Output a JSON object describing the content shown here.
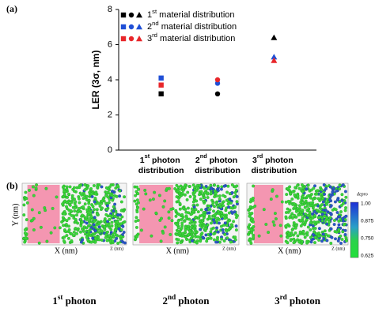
{
  "chart_data": {
    "type": "scatter",
    "panel_label": "(a)",
    "ylabel": "LER (3σ, nm)",
    "categories": [
      "1st photon distribution",
      "2nd photon distribution",
      "3rd photon distribution"
    ],
    "markers": [
      "square",
      "circle",
      "triangle"
    ],
    "series": [
      {
        "name": "1st material distribution",
        "color": "#000000",
        "values": [
          3.2,
          3.2,
          6.4
        ]
      },
      {
        "name": "2nd material distribution",
        "color": "#1f4fd6",
        "values": [
          4.1,
          3.8,
          5.3
        ]
      },
      {
        "name": "3rd material distribution",
        "color": "#e8262a",
        "values": [
          3.7,
          4.0,
          5.1
        ]
      }
    ],
    "ylim": [
      0,
      8
    ],
    "yticks": [
      0,
      2,
      4,
      6,
      8
    ],
    "grid": false,
    "legend": "upper left"
  },
  "panel_b": {
    "panel_label": "(b)",
    "y_label": "Y (nm)",
    "x_label": "X (nm)",
    "z_label": "Z (nm)",
    "titles": [
      "1st photon",
      "2nd photon",
      "3rd photon"
    ],
    "colorbar": {
      "label": "f",
      "label_sub": "depro",
      "ticks": [
        "1.00",
        "0.875",
        "0.750",
        "0.625"
      ]
    }
  }
}
